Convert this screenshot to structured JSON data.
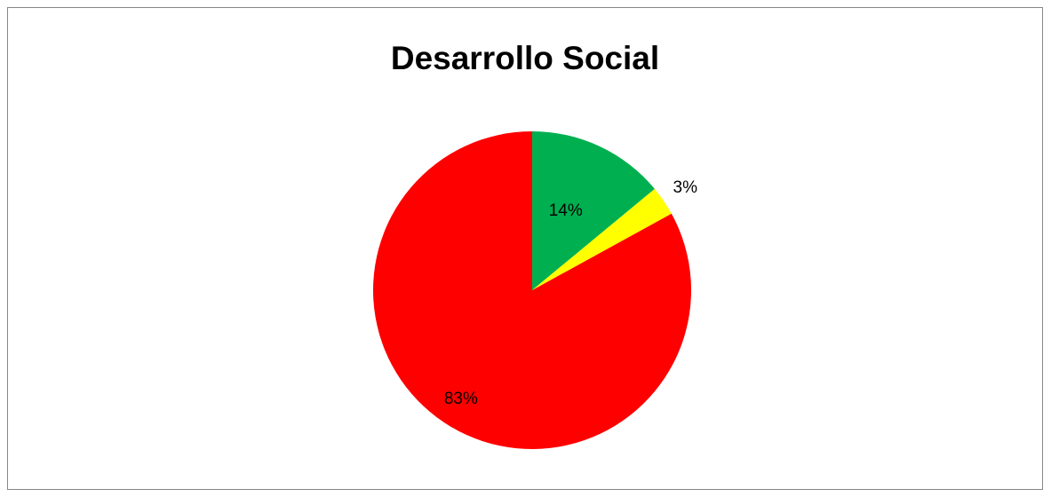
{
  "chart_data": {
    "type": "pie",
    "title": "Desarrollo Social",
    "slices": [
      {
        "value": 14,
        "label": "14%",
        "color": "#00b050"
      },
      {
        "value": 3,
        "label": "3%",
        "color": "#ffff00"
      },
      {
        "value": 83,
        "label": "83%",
        "color": "#ff0000"
      }
    ],
    "legend": "none",
    "start_angle_deg": 0,
    "direction": "clockwise"
  }
}
